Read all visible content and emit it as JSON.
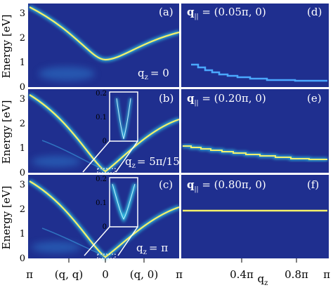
{
  "figure": {
    "ylabel": "Energy [eV]",
    "left_yticks": [
      "0",
      "1",
      "2",
      "3"
    ],
    "left_xticks": [
      "π",
      "(q, q)",
      "0",
      "(q, 0)",
      "π"
    ],
    "right_xticks": [
      "0.4π",
      "0.8π",
      "π"
    ],
    "right_xlabel": "q",
    "right_xlabel_sub": "z",
    "colors": {
      "background": "#1f2f8f",
      "dispersion": "#f5f06a",
      "glow": "#33c8e6",
      "text_on_plot": "#ffffff"
    }
  },
  "panels": [
    {
      "id": "a",
      "label": "(a)",
      "annotation_main": "q",
      "annotation_sub": "z",
      "annotation_val": "= 0"
    },
    {
      "id": "b",
      "label": "(b)",
      "annotation_main": "q",
      "annotation_sub": "z",
      "annotation_val": "= 5π/15",
      "inset": {
        "yticks": [
          "0",
          "0.1",
          "0.2"
        ]
      }
    },
    {
      "id": "c",
      "label": "(c)",
      "annotation_main": "q",
      "annotation_sub": "z",
      "annotation_val": "= π",
      "inset": {
        "yticks": [
          "0",
          "0.1",
          "0.2"
        ]
      }
    },
    {
      "id": "d",
      "label": "(d)",
      "q_main": "q",
      "q_sub": "||",
      "q_val": " = (0.05π, 0)"
    },
    {
      "id": "e",
      "label": "(e)",
      "q_main": "q",
      "q_sub": "||",
      "q_val": " = (0.20π, 0)"
    },
    {
      "id": "f",
      "label": "(f)",
      "q_main": "q",
      "q_sub": "||",
      "q_val": " = (0.80π, 0)"
    }
  ]
}
